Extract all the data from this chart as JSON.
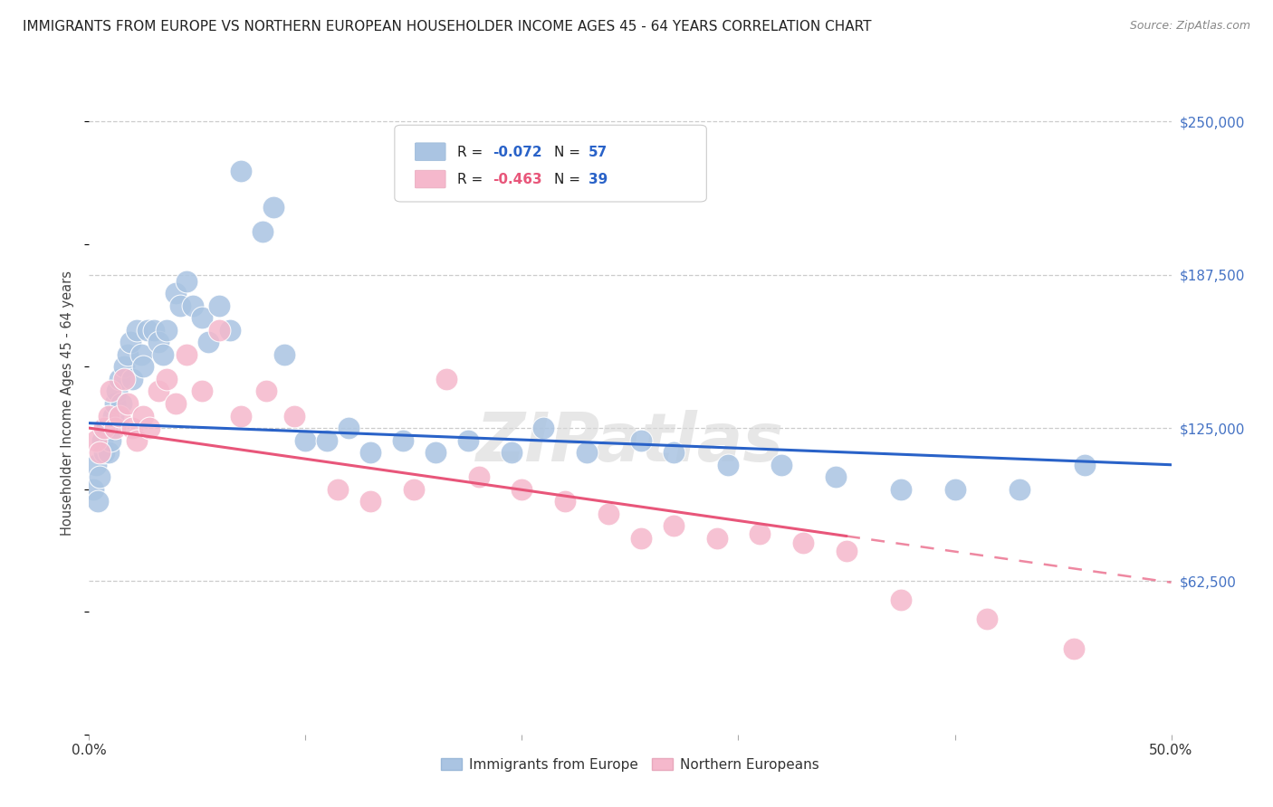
{
  "title": "IMMIGRANTS FROM EUROPE VS NORTHERN EUROPEAN HOUSEHOLDER INCOME AGES 45 - 64 YEARS CORRELATION CHART",
  "source": "Source: ZipAtlas.com",
  "ylabel": "Householder Income Ages 45 - 64 years",
  "xlim": [
    0.0,
    0.5
  ],
  "ylim": [
    0,
    270000
  ],
  "yticks_right": [
    62500,
    125000,
    187500,
    250000
  ],
  "ytick_labels_right": [
    "$62,500",
    "$125,000",
    "$187,500",
    "$250,000"
  ],
  "color_blue": "#aac4e2",
  "color_pink": "#f5b8cc",
  "line_blue": "#2962c8",
  "line_pink": "#e8567a",
  "background": "#ffffff",
  "grid_color": "#cccccc",
  "watermark": "ZIPatlas",
  "blue_x": [
    0.002,
    0.003,
    0.004,
    0.005,
    0.006,
    0.007,
    0.008,
    0.009,
    0.01,
    0.011,
    0.012,
    0.013,
    0.014,
    0.015,
    0.016,
    0.018,
    0.019,
    0.02,
    0.022,
    0.024,
    0.025,
    0.027,
    0.03,
    0.032,
    0.034,
    0.036,
    0.04,
    0.042,
    0.045,
    0.048,
    0.052,
    0.055,
    0.06,
    0.065,
    0.07,
    0.08,
    0.085,
    0.09,
    0.1,
    0.11,
    0.12,
    0.13,
    0.145,
    0.16,
    0.175,
    0.195,
    0.21,
    0.23,
    0.255,
    0.27,
    0.295,
    0.32,
    0.345,
    0.375,
    0.4,
    0.43,
    0.46
  ],
  "blue_y": [
    100000,
    110000,
    95000,
    105000,
    120000,
    115000,
    125000,
    115000,
    120000,
    130000,
    135000,
    140000,
    145000,
    135000,
    150000,
    155000,
    160000,
    145000,
    165000,
    155000,
    150000,
    165000,
    165000,
    160000,
    155000,
    165000,
    180000,
    175000,
    185000,
    175000,
    170000,
    160000,
    175000,
    165000,
    230000,
    205000,
    215000,
    155000,
    120000,
    120000,
    125000,
    115000,
    120000,
    115000,
    120000,
    115000,
    125000,
    115000,
    120000,
    115000,
    110000,
    110000,
    105000,
    100000,
    100000,
    100000,
    110000
  ],
  "pink_x": [
    0.003,
    0.005,
    0.007,
    0.009,
    0.01,
    0.012,
    0.014,
    0.016,
    0.018,
    0.02,
    0.022,
    0.025,
    0.028,
    0.032,
    0.036,
    0.04,
    0.045,
    0.052,
    0.06,
    0.07,
    0.082,
    0.095,
    0.115,
    0.13,
    0.15,
    0.165,
    0.18,
    0.2,
    0.22,
    0.24,
    0.255,
    0.27,
    0.29,
    0.31,
    0.33,
    0.35,
    0.375,
    0.415,
    0.455
  ],
  "pink_y": [
    120000,
    115000,
    125000,
    130000,
    140000,
    125000,
    130000,
    145000,
    135000,
    125000,
    120000,
    130000,
    125000,
    140000,
    145000,
    135000,
    155000,
    140000,
    165000,
    130000,
    140000,
    130000,
    100000,
    95000,
    100000,
    145000,
    105000,
    100000,
    95000,
    90000,
    80000,
    85000,
    80000,
    82000,
    78000,
    75000,
    55000,
    47000,
    35000
  ]
}
